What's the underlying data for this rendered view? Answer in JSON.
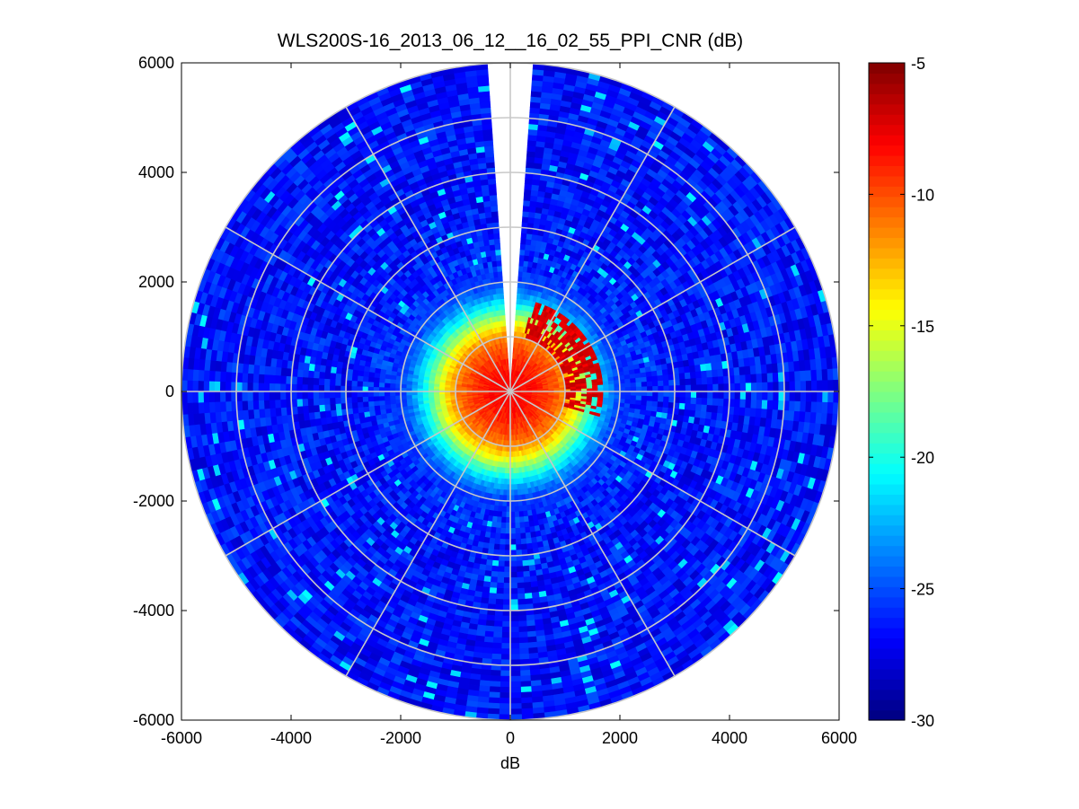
{
  "chart_data": {
    "type": "heatmap",
    "subtype": "polar-ppi",
    "title": "WLS200S-16_2013_06_12__16_02_55_PPI_CNR (dB)",
    "xlabel": "dB",
    "ylabel": "",
    "xlim": [
      -6000,
      6000
    ],
    "ylim": [
      -6000,
      6000
    ],
    "xticks": [
      "-6000",
      "-4000",
      "-2000",
      "0",
      "2000",
      "4000",
      "6000"
    ],
    "yticks": [
      "6000",
      "4000",
      "2000",
      "0",
      "-2000",
      "-4000",
      "-6000"
    ],
    "max_range": 6000,
    "range_rings": [
      1000,
      2000,
      3000,
      4000,
      5000,
      6000
    ],
    "spoke_step_deg": 30,
    "blind_sector_deg": [
      -4,
      4
    ],
    "colorbar": {
      "colormap": "jet",
      "min": -30,
      "max": -5,
      "ticks": [
        "-5",
        "-10",
        "-15",
        "-20",
        "-25",
        "-30"
      ]
    },
    "cnr_profile": {
      "range_m": [
        0,
        400,
        800,
        1000,
        1200,
        1400,
        1600,
        1800,
        2000,
        3000,
        6000
      ],
      "cnr_db": [
        -8,
        -8.5,
        -10,
        -11.5,
        -14,
        -17.5,
        -21,
        -23.5,
        -25.5,
        -26.5,
        -26.5
      ]
    },
    "hard_target": {
      "azimuth_deg": [
        15,
        105
      ],
      "range_m": [
        1050,
        1650
      ],
      "cnr_db": -6.5
    },
    "grid": true,
    "legend": "none"
  }
}
